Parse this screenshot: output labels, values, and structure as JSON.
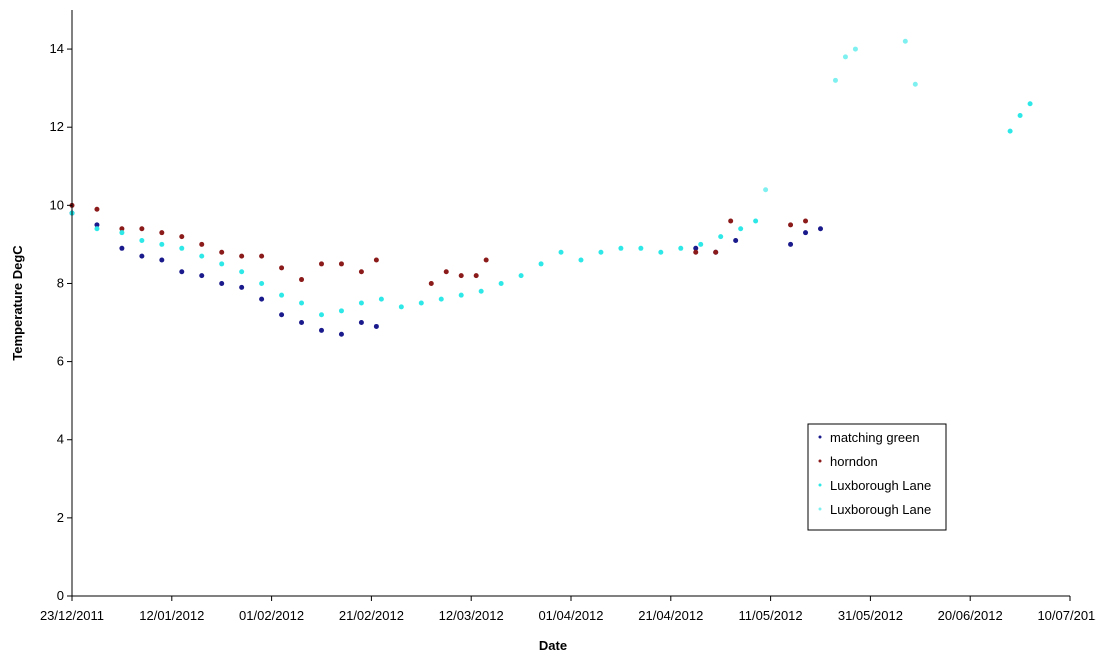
{
  "chart_data": {
    "type": "scatter",
    "title": "",
    "xlabel": "Date",
    "ylabel": "Temperature DegC",
    "xlim": [
      "23/12/2011",
      "10/07/2012"
    ],
    "ylim": [
      0,
      15
    ],
    "x_ticks": [
      "23/12/2011",
      "12/01/2012",
      "01/02/2012",
      "21/02/2012",
      "12/03/2012",
      "01/04/2012",
      "21/04/2012",
      "11/05/2012",
      "31/05/2012",
      "20/06/2012",
      "10/07/2012"
    ],
    "y_ticks": [
      "0",
      "2",
      "4",
      "6",
      "8",
      "10",
      "12",
      "14"
    ],
    "grid": false,
    "legend_position": "right",
    "series": [
      {
        "name": "matching green",
        "color": "#1a1a8c",
        "points": [
          [
            "23/12/2011",
            9.8
          ],
          [
            "28/12/2011",
            9.5
          ],
          [
            "02/01/2012",
            8.9
          ],
          [
            "06/01/2012",
            8.7
          ],
          [
            "10/01/2012",
            8.6
          ],
          [
            "14/01/2012",
            8.3
          ],
          [
            "18/01/2012",
            8.2
          ],
          [
            "22/01/2012",
            8.0
          ],
          [
            "26/01/2012",
            7.9
          ],
          [
            "30/01/2012",
            7.6
          ],
          [
            "03/02/2012",
            7.2
          ],
          [
            "07/02/2012",
            7.0
          ],
          [
            "11/02/2012",
            6.8
          ],
          [
            "15/02/2012",
            6.7
          ],
          [
            "19/02/2012",
            7.0
          ],
          [
            "22/02/2012",
            6.9
          ],
          [
            "26/04/2012",
            8.9
          ],
          [
            "30/04/2012",
            8.8
          ],
          [
            "04/05/2012",
            9.1
          ],
          [
            "15/05/2012",
            9.0
          ],
          [
            "18/05/2012",
            9.3
          ],
          [
            "21/05/2012",
            9.4
          ]
        ]
      },
      {
        "name": "horndon",
        "color": "#8b1a1a",
        "points": [
          [
            "23/12/2011",
            10.0
          ],
          [
            "28/12/2011",
            9.9
          ],
          [
            "02/01/2012",
            9.4
          ],
          [
            "06/01/2012",
            9.4
          ],
          [
            "10/01/2012",
            9.3
          ],
          [
            "14/01/2012",
            9.2
          ],
          [
            "18/01/2012",
            9.0
          ],
          [
            "22/01/2012",
            8.8
          ],
          [
            "26/01/2012",
            8.7
          ],
          [
            "30/01/2012",
            8.7
          ],
          [
            "03/02/2012",
            8.4
          ],
          [
            "07/02/2012",
            8.1
          ],
          [
            "11/02/2012",
            8.5
          ],
          [
            "15/02/2012",
            8.5
          ],
          [
            "19/02/2012",
            8.3
          ],
          [
            "22/02/2012",
            8.6
          ],
          [
            "04/03/2012",
            8.0
          ],
          [
            "07/03/2012",
            8.3
          ],
          [
            "10/03/2012",
            8.2
          ],
          [
            "13/03/2012",
            8.2
          ],
          [
            "15/03/2012",
            8.6
          ],
          [
            "26/04/2012",
            8.8
          ],
          [
            "30/04/2012",
            8.8
          ],
          [
            "03/05/2012",
            9.6
          ],
          [
            "15/05/2012",
            9.5
          ],
          [
            "18/05/2012",
            9.6
          ]
        ]
      },
      {
        "name": "Luxborough Lane",
        "color": "#2ee8e8",
        "points": [
          [
            "23/12/2011",
            9.8
          ],
          [
            "28/12/2011",
            9.4
          ],
          [
            "02/01/2012",
            9.3
          ],
          [
            "06/01/2012",
            9.1
          ],
          [
            "10/01/2012",
            9.0
          ],
          [
            "14/01/2012",
            8.9
          ],
          [
            "18/01/2012",
            8.7
          ],
          [
            "22/01/2012",
            8.5
          ],
          [
            "26/01/2012",
            8.3
          ],
          [
            "30/01/2012",
            8.0
          ],
          [
            "03/02/2012",
            7.7
          ],
          [
            "07/02/2012",
            7.5
          ],
          [
            "11/02/2012",
            7.2
          ],
          [
            "15/02/2012",
            7.3
          ],
          [
            "19/02/2012",
            7.5
          ],
          [
            "23/02/2012",
            7.6
          ],
          [
            "27/02/2012",
            7.4
          ],
          [
            "02/03/2012",
            7.5
          ],
          [
            "06/03/2012",
            7.6
          ],
          [
            "10/03/2012",
            7.7
          ],
          [
            "14/03/2012",
            7.8
          ],
          [
            "18/03/2012",
            8.0
          ],
          [
            "22/03/2012",
            8.2
          ],
          [
            "26/03/2012",
            8.5
          ],
          [
            "30/03/2012",
            8.8
          ],
          [
            "03/04/2012",
            8.6
          ],
          [
            "07/04/2012",
            8.8
          ],
          [
            "11/04/2012",
            8.9
          ],
          [
            "15/04/2012",
            8.9
          ],
          [
            "19/04/2012",
            8.8
          ],
          [
            "23/04/2012",
            8.9
          ],
          [
            "27/04/2012",
            9.0
          ],
          [
            "01/05/2012",
            9.2
          ],
          [
            "05/05/2012",
            9.4
          ],
          [
            "08/05/2012",
            9.6
          ],
          [
            "28/06/2012",
            11.9
          ],
          [
            "30/06/2012",
            12.3
          ],
          [
            "02/07/2012",
            12.6
          ]
        ]
      },
      {
        "name": "Luxborough Lane",
        "color": "#7ff0f0",
        "points": [
          [
            "10/05/2012",
            10.4
          ],
          [
            "24/05/2012",
            13.2
          ],
          [
            "26/05/2012",
            13.8
          ],
          [
            "28/05/2012",
            14.0
          ],
          [
            "07/06/2012",
            14.2
          ],
          [
            "09/06/2012",
            13.1
          ]
        ]
      }
    ]
  }
}
